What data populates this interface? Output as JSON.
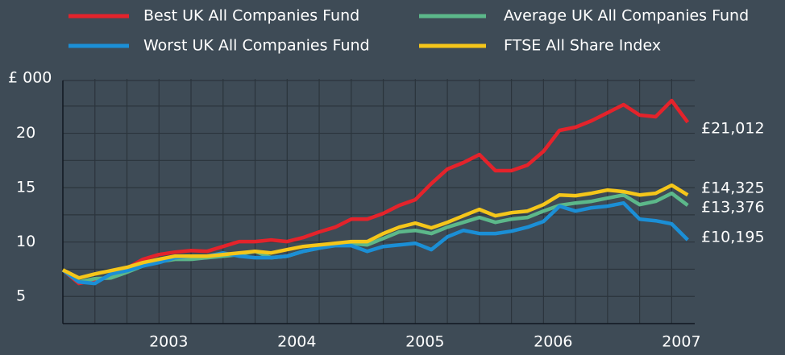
{
  "chart_data": {
    "type": "line",
    "y_label": "£ 000",
    "x": [
      2002.25,
      2002.375,
      2002.5,
      2002.625,
      2002.75,
      2002.875,
      2003,
      2003.125,
      2003.25,
      2003.375,
      2003.5,
      2003.625,
      2003.75,
      2003.875,
      2004,
      2004.125,
      2004.25,
      2004.375,
      2004.5,
      2004.625,
      2004.75,
      2004.875,
      2005,
      2005.125,
      2005.25,
      2005.375,
      2005.5,
      2005.625,
      2005.75,
      2005.875,
      2006,
      2006.125,
      2006.25,
      2006.375,
      2006.5,
      2006.625,
      2006.75,
      2006.875,
      2007,
      2007.125
    ],
    "series": [
      {
        "name": "Best UK All  Companies Fund",
        "color": "#e4232b",
        "end_label": "£21,012",
        "values": [
          7.44,
          6.19,
          6.48,
          6.85,
          7.59,
          8.41,
          8.85,
          9.07,
          9.22,
          9.15,
          9.59,
          10.04,
          10.04,
          10.19,
          10.04,
          10.41,
          10.93,
          11.37,
          12.11,
          12.11,
          12.63,
          13.37,
          13.89,
          15.37,
          16.7,
          17.3,
          18.04,
          16.56,
          16.56,
          17.07,
          18.33,
          20.26,
          20.56,
          21.15,
          21.89,
          22.63,
          21.67,
          21.52,
          23.0,
          21.012
        ]
      },
      {
        "name": "Average UK All  Companies Fund",
        "color": "#5cb88a",
        "end_label": "£13,376",
        "values": [
          7.44,
          6.33,
          6.63,
          6.7,
          7.22,
          7.81,
          8.19,
          8.41,
          8.41,
          8.56,
          8.7,
          8.85,
          9.15,
          8.56,
          8.7,
          9.15,
          9.44,
          9.74,
          9.89,
          9.74,
          10.33,
          10.93,
          11.07,
          10.78,
          11.37,
          11.81,
          12.26,
          11.81,
          12.11,
          12.26,
          12.85,
          13.37,
          13.59,
          13.74,
          14.04,
          14.33,
          13.44,
          13.74,
          14.48,
          13.376
        ]
      },
      {
        "name": "Worst UK All  Companies Fund",
        "color": "#1b8fd6",
        "end_label": "£10,195",
        "values": [
          7.44,
          6.33,
          6.19,
          7.07,
          7.37,
          7.81,
          8.11,
          8.56,
          8.7,
          8.7,
          9.0,
          8.7,
          8.56,
          8.56,
          8.7,
          9.15,
          9.44,
          9.67,
          9.67,
          9.15,
          9.59,
          9.74,
          9.89,
          9.3,
          10.48,
          11.07,
          10.78,
          10.78,
          11.0,
          11.37,
          11.89,
          13.3,
          12.85,
          13.15,
          13.3,
          13.59,
          12.11,
          11.96,
          11.67,
          10.195
        ]
      },
      {
        "name": "FTSE All Share Index",
        "color": "#f5c61a",
        "end_label": "£14,325",
        "values": [
          7.44,
          6.7,
          7.07,
          7.37,
          7.67,
          8.11,
          8.41,
          8.7,
          8.7,
          8.7,
          8.85,
          9.0,
          9.15,
          9.0,
          9.3,
          9.59,
          9.74,
          9.89,
          10.04,
          10.04,
          10.78,
          11.37,
          11.74,
          11.3,
          11.81,
          12.41,
          13.0,
          12.41,
          12.7,
          12.85,
          13.44,
          14.33,
          14.26,
          14.48,
          14.78,
          14.63,
          14.33,
          14.48,
          15.22,
          14.325
        ]
      }
    ],
    "xlim": [
      2002.25,
      2007.18
    ],
    "xticks": [
      2003,
      2004,
      2005,
      2006,
      2007
    ],
    "xgrid": [
      2002.5,
      2002.75,
      2003,
      2003.25,
      2003.5,
      2003.75,
      2004,
      2004.25,
      2004.5,
      2004.75,
      2005,
      2005.25,
      2005.5,
      2005.75,
      2006,
      2006.25,
      2006.5,
      2006.75,
      2007
    ],
    "ylim": [
      2.5,
      25
    ],
    "yticks": [
      5,
      10,
      15,
      20
    ],
    "ygrid": [
      7.5,
      12.5,
      17.5,
      22.5
    ],
    "grid": true,
    "legend": "top"
  }
}
